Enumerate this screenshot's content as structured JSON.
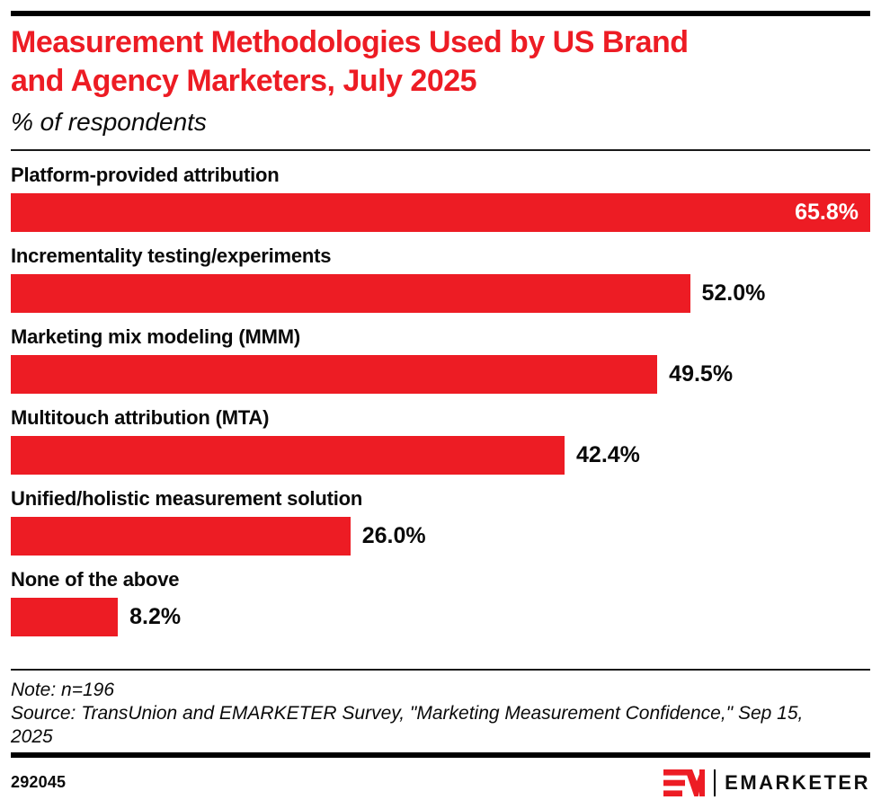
{
  "header": {
    "title": "Measurement Methodologies Used by US Brand and Agency Marketers, July 2025",
    "title_lines": [
      "Measurement Methodologies Used by US Brand",
      "and Agency Marketers, July 2025"
    ],
    "subtitle": "% of respondents"
  },
  "chart_data": {
    "type": "bar",
    "orientation": "horizontal",
    "title": "Measurement Methodologies Used by US Brand and Agency Marketers, July 2025",
    "subtitle": "% of respondents",
    "categories": [
      "Platform-provided attribution",
      "Incrementality testing/experiments",
      "Marketing mix modeling (MMM)",
      "Multitouch attribution (MTA)",
      "Unified/holistic measurement solution",
      "None of the above"
    ],
    "values": [
      65.8,
      52.0,
      49.5,
      42.4,
      26.0,
      8.2
    ],
    "value_labels": [
      "65.8%",
      "52.0%",
      "49.5%",
      "42.4%",
      "26.0%",
      "8.2%"
    ],
    "axis_max": 65.8,
    "inside_label_indices": [
      0
    ],
    "bar_color": "#ED1C24",
    "grid": false,
    "legend": false
  },
  "footer": {
    "note": "Note: n=196",
    "source": "Source: TransUnion and EMARKETER Survey, \"Marketing Measurement Confidence,\" Sep 15, 2025",
    "chart_id": "292045",
    "brand_name": "EMARKETER"
  },
  "colors": {
    "accent_red": "#ED1C24",
    "text_black": "#0A0A0A",
    "inside_value_text": "#FFFFFF"
  }
}
